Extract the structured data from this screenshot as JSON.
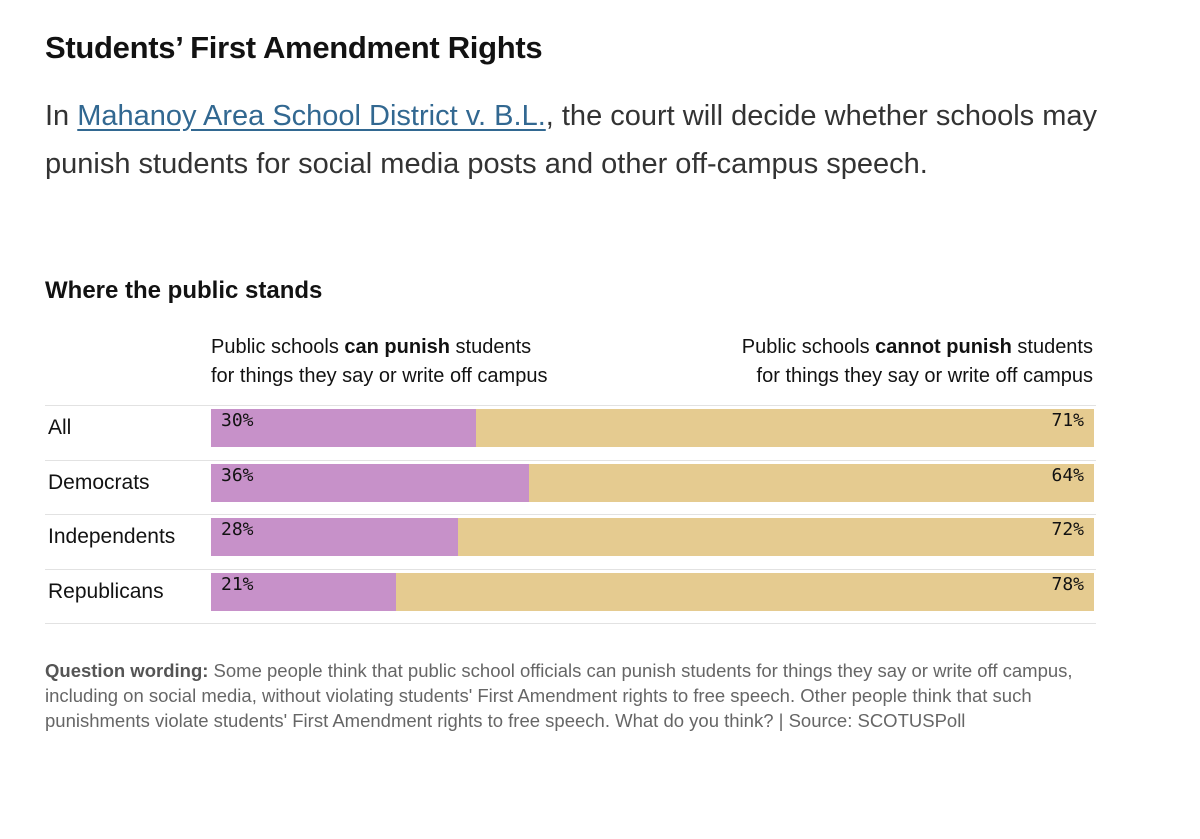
{
  "header": {
    "title": "Students’ First Amendment Rights",
    "intro_prefix": "In ",
    "intro_link": "Mahanoy Area School District v. B.L.",
    "intro_suffix": ", the court will decide whether schools may punish students for social media posts and other off-campus speech."
  },
  "chart_data": {
    "type": "bar",
    "subtype": "stacked-horizontal",
    "title": "Where the public stands",
    "columns": {
      "left": {
        "before": "Public schools ",
        "bold": "can punish",
        "after": " students",
        "line2": "for things they say or write off campus"
      },
      "right": {
        "before": "Public schools ",
        "bold": "cannot punish",
        "after": " students",
        "line2": "for things they say or write off campus"
      }
    },
    "categories": [
      "All",
      "Democrats",
      "Independents",
      "Republicans"
    ],
    "series": [
      {
        "name": "Public schools can punish students for things they say or write off campus",
        "values": [
          30,
          36,
          28,
          21
        ],
        "color": "#c791c9"
      },
      {
        "name": "Public schools cannot punish students for things they say or write off campus",
        "values": [
          71,
          64,
          72,
          78
        ],
        "color": "#e5cb90"
      }
    ],
    "value_labels": {
      "can": [
        "30%",
        "36%",
        "28%",
        "21%"
      ],
      "cannot": [
        "71%",
        "64%",
        "72%",
        "78%"
      ]
    },
    "xlim": [
      0,
      100
    ],
    "grid": false,
    "legend": "column headers above bars"
  },
  "footnote": {
    "label": "Question wording:",
    "text": " Some people think that public school officials can punish students for things they say or write off campus, including on social media, without violating students' First Amendment rights to free speech. Other people think that such punishments violate students' First Amendment rights to free speech. What do you think? | Source: SCOTUSPoll"
  }
}
